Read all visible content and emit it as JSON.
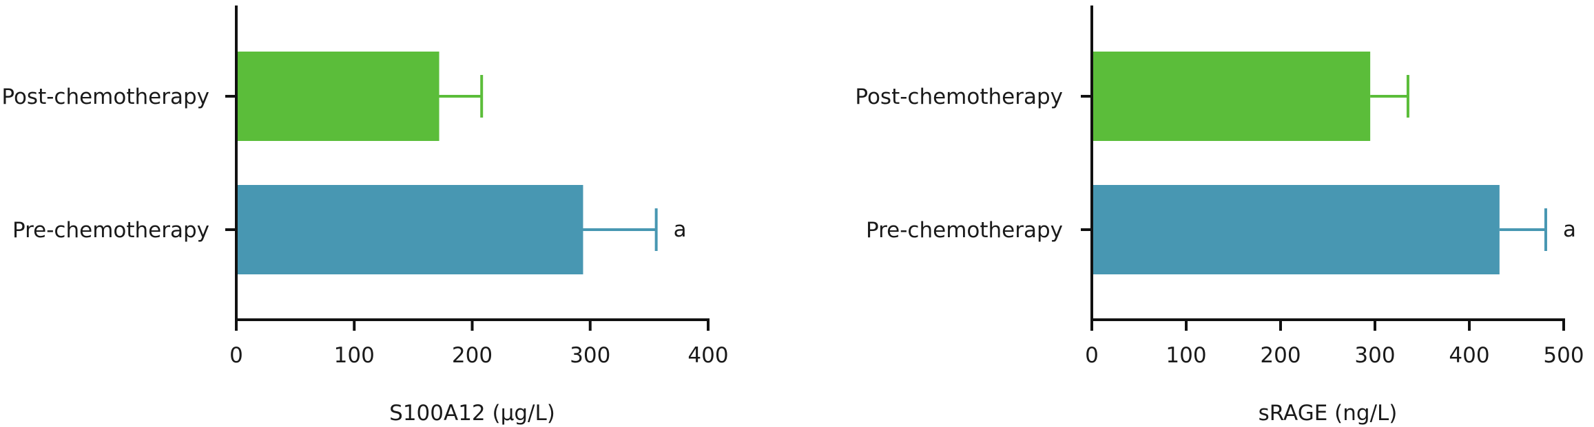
{
  "chart_data": [
    {
      "type": "bar",
      "orientation": "horizontal",
      "categories": [
        "Post-chemotherapy",
        "Pre-chemotherapy"
      ],
      "values": [
        172,
        294
      ],
      "errors": [
        36,
        62
      ],
      "annotations": [
        "",
        "a"
      ],
      "colors": [
        "#5bbd3a",
        "#4897b2"
      ],
      "xlabel": "S100A12 (μg/L)",
      "xlim": [
        0,
        400
      ],
      "xticks": [
        0,
        100,
        200,
        300,
        400
      ],
      "grid": false,
      "legend": "none"
    },
    {
      "type": "bar",
      "orientation": "horizontal",
      "categories": [
        "Post-chemotherapy",
        "Pre-chemotherapy"
      ],
      "values": [
        295,
        432
      ],
      "errors": [
        40,
        49
      ],
      "annotations": [
        "",
        "a"
      ],
      "colors": [
        "#5bbd3a",
        "#4897b2"
      ],
      "xlabel": "sRAGE (ng/L)",
      "xlim": [
        0,
        500
      ],
      "xticks": [
        0,
        100,
        200,
        300,
        400,
        500
      ],
      "grid": false,
      "legend": "none"
    }
  ]
}
